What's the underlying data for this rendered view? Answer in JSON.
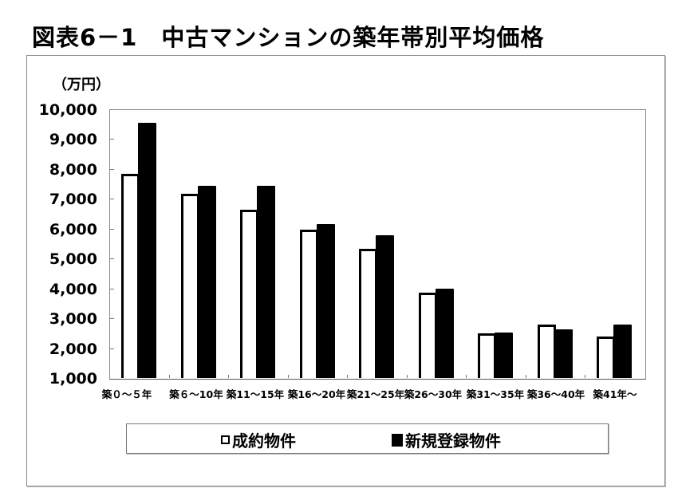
{
  "title": "図表6－1　中古マンションの築年帯別平均価格",
  "unit_label": "（万円）",
  "y_axis": {
    "ticks": [
      "10,000",
      "9,000",
      "8,000",
      "7,000",
      "6,000",
      "5,000",
      "4,000",
      "3,000",
      "2,000",
      "1,000"
    ]
  },
  "legend": {
    "items": [
      {
        "label": "成約物件",
        "marker": "white-square"
      },
      {
        "label": "新規登録物件",
        "marker": "black-square"
      }
    ]
  },
  "colors": {
    "series1_fill": "#ffffff",
    "series1_border": "#000000",
    "series2_fill": "#000000",
    "frame": "#8a8a8a"
  },
  "chart_data": {
    "type": "bar",
    "title": "図表6－1　中古マンションの築年帯別平均価格",
    "xlabel": "",
    "ylabel": "（万円）",
    "ylim": [
      1000,
      10000
    ],
    "yticks": [
      1000,
      2000,
      3000,
      4000,
      5000,
      6000,
      7000,
      8000,
      9000,
      10000
    ],
    "grid": false,
    "legend_position": "bottom",
    "categories": [
      "築０～５年",
      "築６～10年",
      "築11～15年",
      "築16～20年",
      "築21～25年",
      "築26～30年",
      "築31～35年",
      "築36～40年",
      "築41年～"
    ],
    "series": [
      {
        "name": "成約物件",
        "values": [
          7830,
          7170,
          6640,
          5970,
          5330,
          3850,
          2490,
          2780,
          2380
        ]
      },
      {
        "name": "新規登録物件",
        "values": [
          9540,
          7440,
          7430,
          6160,
          5780,
          3980,
          2520,
          2620,
          2800
        ]
      }
    ]
  }
}
